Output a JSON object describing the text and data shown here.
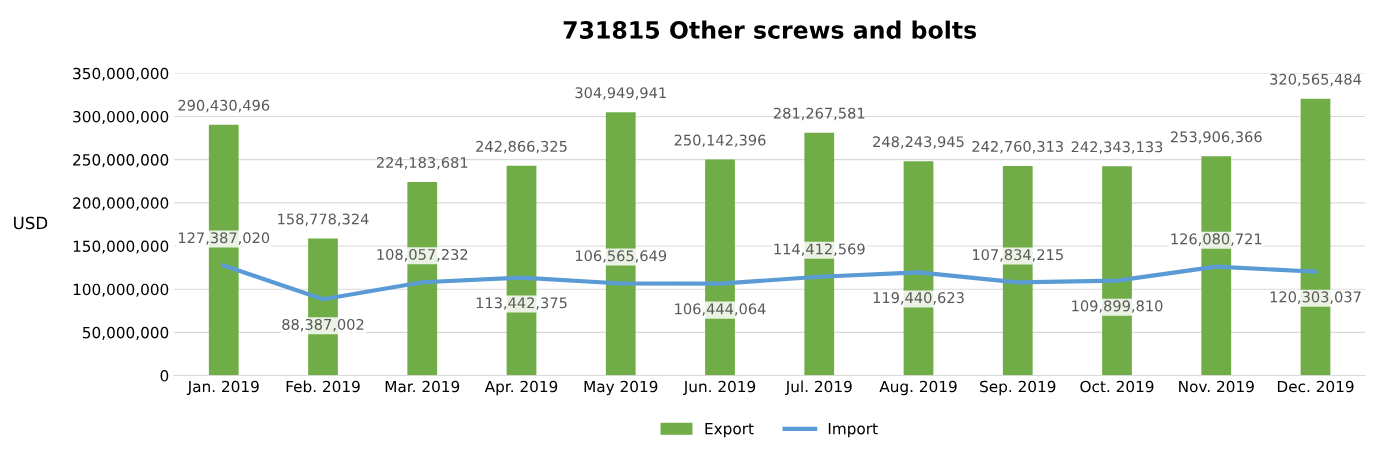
{
  "chart_data": {
    "type": "bar",
    "title": "731815 Other screws and bolts",
    "ylabel": "USD",
    "categories": [
      "Jan. 2019",
      "Feb. 2019",
      "Mar. 2019",
      "Apr. 2019",
      "May 2019",
      "Jun. 2019",
      "Jul. 2019",
      "Aug. 2019",
      "Sep. 2019",
      "Oct. 2019",
      "Nov. 2019",
      "Dec. 2019"
    ],
    "series": [
      {
        "name": "Export",
        "color": "#70ad47",
        "values": [
          290430496,
          158778324,
          224183681,
          242866325,
          304949941,
          250142396,
          281267581,
          248243945,
          242760313,
          242343133,
          253906366,
          320565484
        ],
        "value_labels": [
          "290,430,496",
          "158,778,324",
          "224,183,681",
          "242,866,325",
          "304,949,941",
          "250,142,396",
          "281,267,581",
          "248,243,945",
          "242,760,313",
          "242,343,133",
          "253,906,366",
          "320,565,484"
        ]
      },
      {
        "name": "Import",
        "type": "line",
        "color": "#5b9bd5",
        "values": [
          127387020,
          88387002,
          108057232,
          113442375,
          106565649,
          106444064,
          114412569,
          119440623,
          107834215,
          109899810,
          126080721,
          120303037
        ],
        "value_labels": [
          "127,387,020",
          "88,387,002",
          "108,057,232",
          "113,442,375",
          "106,565,649",
          "106,444,064",
          "114,412,569",
          "119,440,623",
          "107,834,215",
          "109,899,810",
          "126,080,721",
          "120,303,037"
        ]
      }
    ],
    "ylim": [
      0,
      350000000
    ],
    "yticks": [
      {
        "value": 0,
        "label": "0"
      },
      {
        "value": 50000000,
        "label": "50,000,000"
      },
      {
        "value": 100000000,
        "label": "100,000,000"
      },
      {
        "value": 150000000,
        "label": "150,000,000"
      },
      {
        "value": 200000000,
        "label": "200,000,000"
      },
      {
        "value": 250000000,
        "label": "250,000,000"
      },
      {
        "value": 300000000,
        "label": "300,000,000"
      },
      {
        "value": 350000000,
        "label": "350,000,000"
      }
    ],
    "grid": "y",
    "legend": "bottom",
    "marker": "none",
    "line_style": "solid"
  }
}
